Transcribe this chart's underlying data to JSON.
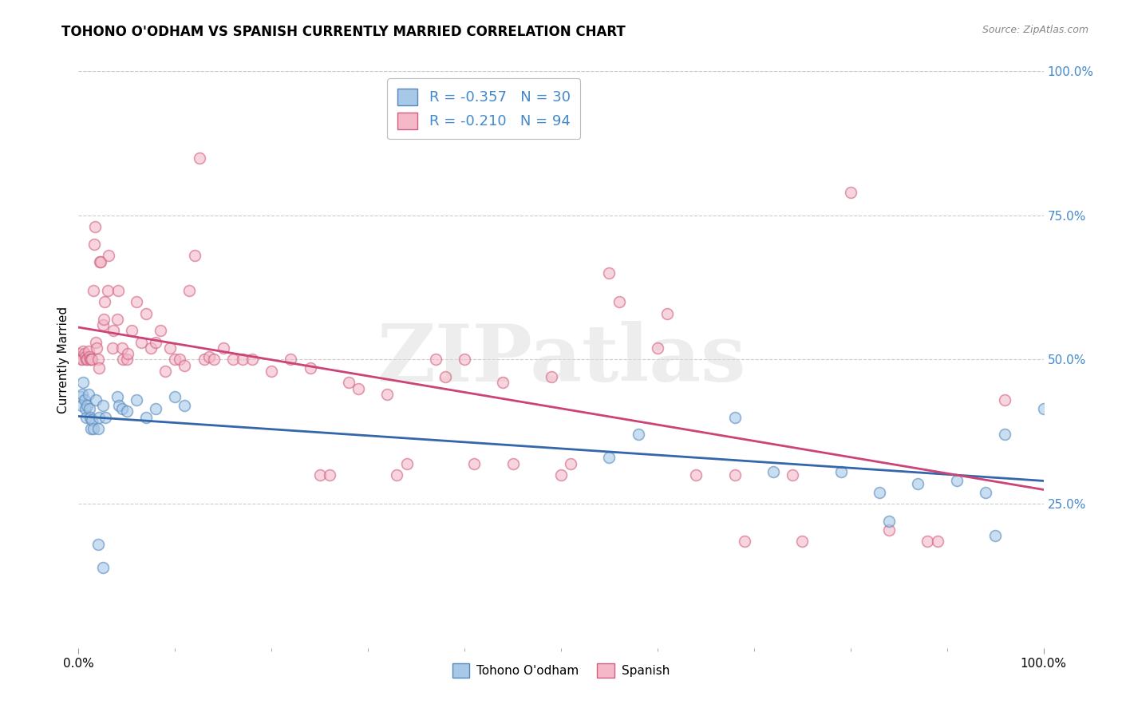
{
  "title": "TOHONO O'ODHAM VS SPANISH CURRENTLY MARRIED CORRELATION CHART",
  "source": "Source: ZipAtlas.com",
  "ylabel": "Currently Married",
  "watermark": "ZIPatlas",
  "legend_labels": [
    "Tohono O'odham",
    "Spanish"
  ],
  "blue_color": "#a8c8e8",
  "pink_color": "#f4b8c8",
  "blue_edge_color": "#5588bb",
  "pink_edge_color": "#d06080",
  "blue_line_color": "#3366aa",
  "pink_line_color": "#cc4477",
  "blue_scatter": [
    [
      0.002,
      0.435
    ],
    [
      0.003,
      0.42
    ],
    [
      0.004,
      0.44
    ],
    [
      0.005,
      0.46
    ],
    [
      0.006,
      0.43
    ],
    [
      0.007,
      0.415
    ],
    [
      0.008,
      0.4
    ],
    [
      0.009,
      0.42
    ],
    [
      0.01,
      0.44
    ],
    [
      0.011,
      0.415
    ],
    [
      0.012,
      0.4
    ],
    [
      0.013,
      0.38
    ],
    [
      0.014,
      0.395
    ],
    [
      0.015,
      0.38
    ],
    [
      0.018,
      0.43
    ],
    [
      0.02,
      0.38
    ],
    [
      0.021,
      0.4
    ],
    [
      0.025,
      0.42
    ],
    [
      0.028,
      0.4
    ],
    [
      0.04,
      0.435
    ],
    [
      0.042,
      0.42
    ],
    [
      0.045,
      0.415
    ],
    [
      0.05,
      0.41
    ],
    [
      0.06,
      0.43
    ],
    [
      0.07,
      0.4
    ],
    [
      0.08,
      0.415
    ],
    [
      0.1,
      0.435
    ],
    [
      0.11,
      0.42
    ],
    [
      0.02,
      0.18
    ],
    [
      0.025,
      0.14
    ],
    [
      0.55,
      0.33
    ],
    [
      0.58,
      0.37
    ],
    [
      0.68,
      0.4
    ],
    [
      0.72,
      0.305
    ],
    [
      0.79,
      0.305
    ],
    [
      0.83,
      0.27
    ],
    [
      0.84,
      0.22
    ],
    [
      0.87,
      0.285
    ],
    [
      0.91,
      0.29
    ],
    [
      0.94,
      0.27
    ],
    [
      0.95,
      0.195
    ],
    [
      0.96,
      0.37
    ],
    [
      1.0,
      0.415
    ]
  ],
  "pink_scatter": [
    [
      0.001,
      0.51
    ],
    [
      0.002,
      0.505
    ],
    [
      0.003,
      0.5
    ],
    [
      0.004,
      0.5
    ],
    [
      0.005,
      0.515
    ],
    [
      0.006,
      0.51
    ],
    [
      0.007,
      0.505
    ],
    [
      0.008,
      0.5
    ],
    [
      0.009,
      0.5
    ],
    [
      0.01,
      0.515
    ],
    [
      0.011,
      0.505
    ],
    [
      0.012,
      0.5
    ],
    [
      0.013,
      0.5
    ],
    [
      0.014,
      0.5
    ],
    [
      0.015,
      0.62
    ],
    [
      0.016,
      0.7
    ],
    [
      0.017,
      0.73
    ],
    [
      0.018,
      0.53
    ],
    [
      0.019,
      0.52
    ],
    [
      0.02,
      0.5
    ],
    [
      0.021,
      0.485
    ],
    [
      0.022,
      0.67
    ],
    [
      0.023,
      0.67
    ],
    [
      0.025,
      0.56
    ],
    [
      0.026,
      0.57
    ],
    [
      0.027,
      0.6
    ],
    [
      0.03,
      0.62
    ],
    [
      0.031,
      0.68
    ],
    [
      0.035,
      0.52
    ],
    [
      0.036,
      0.55
    ],
    [
      0.04,
      0.57
    ],
    [
      0.041,
      0.62
    ],
    [
      0.045,
      0.52
    ],
    [
      0.046,
      0.5
    ],
    [
      0.05,
      0.5
    ],
    [
      0.051,
      0.51
    ],
    [
      0.055,
      0.55
    ],
    [
      0.06,
      0.6
    ],
    [
      0.065,
      0.53
    ],
    [
      0.07,
      0.58
    ],
    [
      0.075,
      0.52
    ],
    [
      0.08,
      0.53
    ],
    [
      0.085,
      0.55
    ],
    [
      0.09,
      0.48
    ],
    [
      0.095,
      0.52
    ],
    [
      0.1,
      0.5
    ],
    [
      0.105,
      0.5
    ],
    [
      0.11,
      0.49
    ],
    [
      0.115,
      0.62
    ],
    [
      0.12,
      0.68
    ],
    [
      0.125,
      0.85
    ],
    [
      0.13,
      0.5
    ],
    [
      0.135,
      0.505
    ],
    [
      0.14,
      0.5
    ],
    [
      0.15,
      0.52
    ],
    [
      0.16,
      0.5
    ],
    [
      0.17,
      0.5
    ],
    [
      0.18,
      0.5
    ],
    [
      0.2,
      0.48
    ],
    [
      0.22,
      0.5
    ],
    [
      0.24,
      0.485
    ],
    [
      0.25,
      0.3
    ],
    [
      0.26,
      0.3
    ],
    [
      0.28,
      0.46
    ],
    [
      0.29,
      0.45
    ],
    [
      0.32,
      0.44
    ],
    [
      0.33,
      0.3
    ],
    [
      0.34,
      0.32
    ],
    [
      0.37,
      0.5
    ],
    [
      0.38,
      0.47
    ],
    [
      0.4,
      0.5
    ],
    [
      0.41,
      0.32
    ],
    [
      0.44,
      0.46
    ],
    [
      0.45,
      0.32
    ],
    [
      0.49,
      0.47
    ],
    [
      0.5,
      0.3
    ],
    [
      0.51,
      0.32
    ],
    [
      0.55,
      0.65
    ],
    [
      0.56,
      0.6
    ],
    [
      0.6,
      0.52
    ],
    [
      0.61,
      0.58
    ],
    [
      0.64,
      0.3
    ],
    [
      0.68,
      0.3
    ],
    [
      0.69,
      0.185
    ],
    [
      0.74,
      0.3
    ],
    [
      0.75,
      0.185
    ],
    [
      0.8,
      0.79
    ],
    [
      0.84,
      0.205
    ],
    [
      0.88,
      0.185
    ],
    [
      0.89,
      0.185
    ],
    [
      0.96,
      0.43
    ]
  ],
  "blue_R": -0.357,
  "blue_N": 30,
  "pink_R": -0.21,
  "pink_N": 94,
  "xlim": [
    0,
    1.0
  ],
  "ylim": [
    0,
    1.0
  ],
  "x_ticks_major": [
    0.0,
    1.0
  ],
  "x_ticks_minor": [
    0.1,
    0.2,
    0.3,
    0.4,
    0.5,
    0.6,
    0.7,
    0.8,
    0.9
  ],
  "y_ticks_right": [
    0.25,
    0.5,
    0.75,
    1.0
  ],
  "background_color": "#ffffff",
  "grid_color": "#cccccc",
  "tick_color_blue": "#4488cc",
  "marker_size": 100,
  "marker_linewidth": 1.2,
  "marker_alpha": 0.6
}
